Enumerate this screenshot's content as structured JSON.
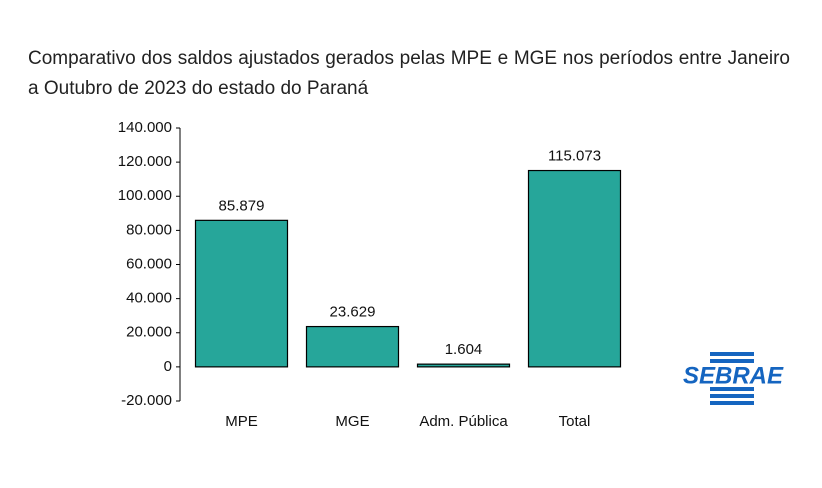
{
  "chart_data": {
    "type": "bar",
    "title": "Comparativo dos saldos ajustados gerados pelas MPE e MGE nos períodos entre Janeiro a Outubro de 2023 do estado do Paraná",
    "categories": [
      "MPE",
      "MGE",
      "Adm. Pública",
      "Total"
    ],
    "values": [
      85879,
      23629,
      1604,
      115073
    ],
    "value_labels": [
      "85.879",
      "23.629",
      "1.604",
      "115.073"
    ],
    "color": "#26a69a",
    "ylim": [
      -20000,
      140000
    ],
    "yticks": [
      {
        "value": -20000,
        "label": "-20.000"
      },
      0,
      {
        "value": 20000,
        "label": "20.000"
      },
      {
        "value": 40000,
        "label": "40.000"
      },
      {
        "value": 60000,
        "label": "60.000"
      },
      {
        "value": 80000,
        "label": "80.000"
      },
      {
        "value": 100000,
        "label": "100.000"
      },
      {
        "value": 120000,
        "label": "120.000"
      },
      {
        "value": 140000,
        "label": "140.000"
      }
    ],
    "grid": false
  },
  "logo": "SEBRAE"
}
